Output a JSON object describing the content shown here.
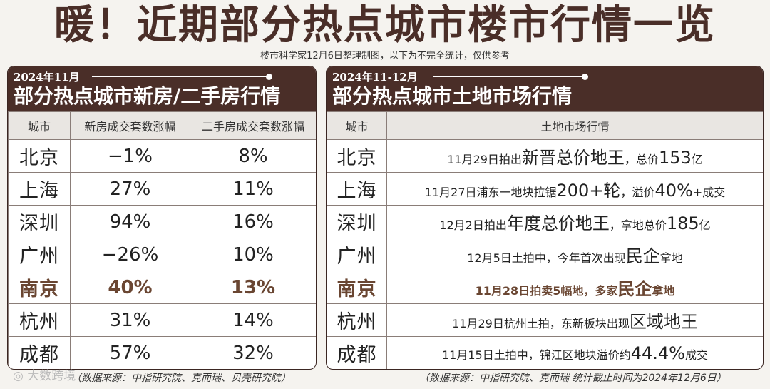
{
  "title": "暖！近期部分热点城市楼市行情一览",
  "subtitle": "楼市科学家12月6日整理制图，以下为不完全统计，仅供参考",
  "left_panel": {
    "date": "2024年11月",
    "title": "部分热点城市新房/二手房行情",
    "headers": [
      "城市",
      "新房成交套数涨幅",
      "二手房成交套数涨幅"
    ],
    "rows": [
      {
        "city": "北京",
        "new": "−1%",
        "second": "8%"
      },
      {
        "city": "上海",
        "new": "27%",
        "second": "11%"
      },
      {
        "city": "深圳",
        "new": "94%",
        "second": "16%"
      },
      {
        "city": "广州",
        "new": "−26%",
        "second": "10%"
      },
      {
        "city": "南京",
        "new": "40%",
        "second": "13%"
      },
      {
        "city": "杭州",
        "new": "31%",
        "second": "14%"
      },
      {
        "city": "成都",
        "new": "57%",
        "second": "32%"
      }
    ],
    "footnote": "（数据来源：中指研究院、克而瑞、贝壳研究院）"
  },
  "right_panel": {
    "date": "2024年11-12月",
    "title": "部分热点城市土地市场行情",
    "headers": [
      "城市",
      "土地市场行情"
    ],
    "rows": [
      {
        "city": "北京",
        "p1": "11月29日拍出",
        "p2": "新晋总价地王",
        "p3": "，总价",
        "p4": "153",
        "p5": "亿"
      },
      {
        "city": "上海",
        "p1": "11月27日浦东一地块拉锯",
        "p2": "200+轮",
        "p3": "，溢价",
        "p4": "40%",
        "p5": "+成交"
      },
      {
        "city": "深圳",
        "p1": "12月2日拍出",
        "p2": "年度总价地王",
        "p3": "，拿地总价",
        "p4": "185",
        "p5": "亿"
      },
      {
        "city": "广州",
        "p1": "12月5日土拍中，今年首次出现",
        "p2": "民企",
        "p3": "拿地",
        "p4": "",
        "p5": ""
      },
      {
        "city": "南京",
        "p1": "11月28日拍卖5幅地，多家",
        "p2": "民企",
        "p3": "拿地",
        "p4": "",
        "p5": ""
      },
      {
        "city": "杭州",
        "p1": "11月29日杭州土拍，东新板块出现",
        "p2": "区域地王",
        "p3": "",
        "p4": "",
        "p5": ""
      },
      {
        "city": "成都",
        "p1": "11月15日土拍中，锦江区地块溢价约",
        "p2": "44.4%",
        "p3": "成交",
        "p4": "",
        "p5": ""
      }
    ],
    "footnote": "（数据来源：中指研究院、克而瑞 统计截止时间为2024年12月6日）"
  },
  "watermark": "大数跨境",
  "highlight_color": "#6a4632",
  "header_color": "#4a2e28"
}
